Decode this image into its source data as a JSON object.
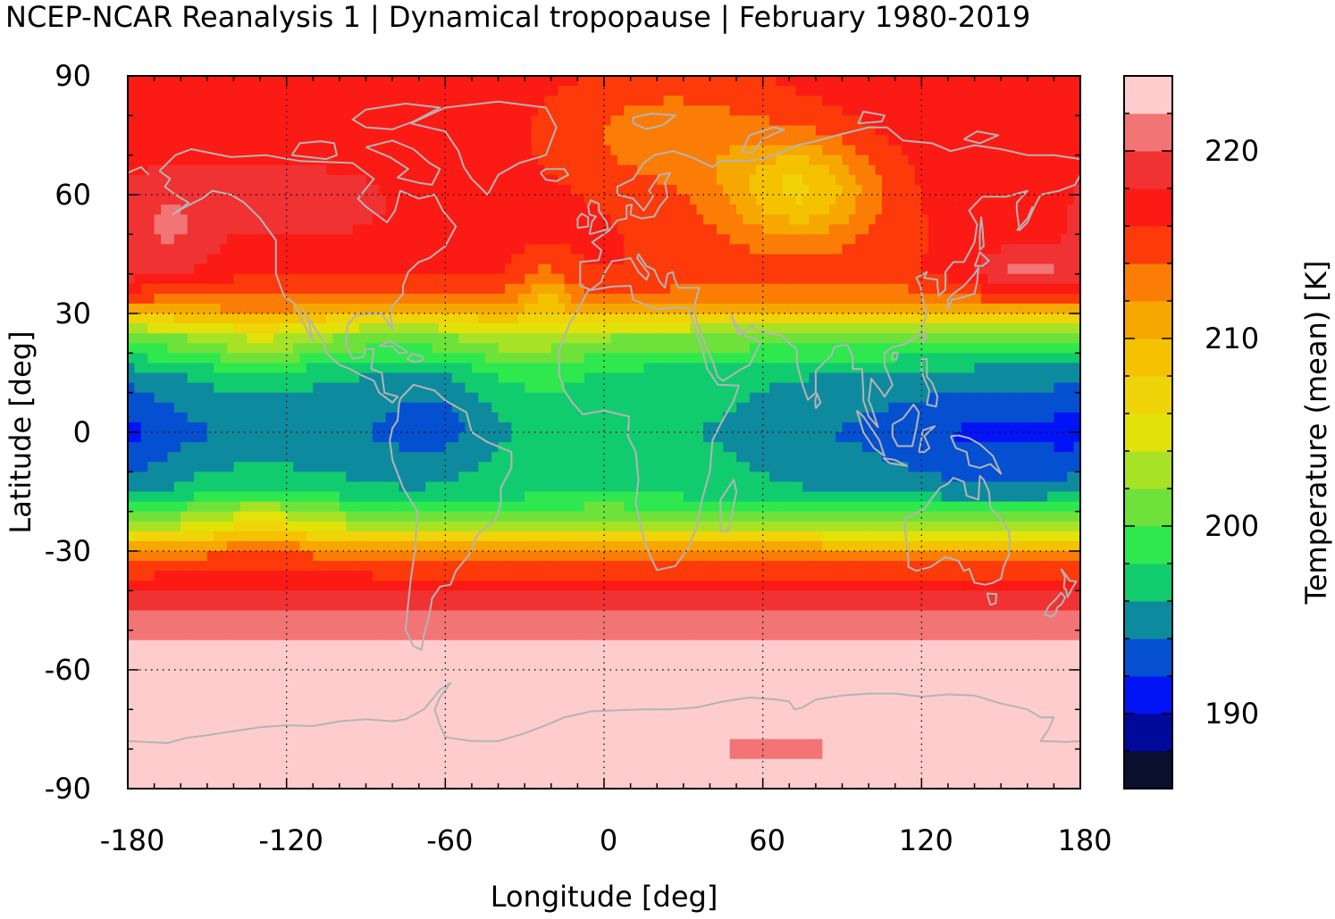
{
  "title": "NCEP-NCAR Reanalysis 1 | Dynamical tropopause | February 1980-2019",
  "chart_data": {
    "type": "heatmap",
    "xlabel": "Longitude [deg]",
    "ylabel": "Latitude [deg]",
    "xlim": [
      -180,
      180
    ],
    "ylim": [
      -90,
      90
    ],
    "xticks": [
      -180,
      -120,
      -60,
      0,
      60,
      120,
      180
    ],
    "yticks": [
      90,
      60,
      30,
      0,
      -30,
      -60,
      -90
    ],
    "colorbar": {
      "label": "Temperature (mean) [K]",
      "ticks": [
        190,
        200,
        210,
        220
      ],
      "range": [
        186,
        224
      ],
      "step": 2,
      "colors": [
        "#0a0f2e",
        "#000a9a",
        "#0014f5",
        "#0550d0",
        "#0e8a9e",
        "#11cc6e",
        "#2ee84e",
        "#6ee23a",
        "#a8e226",
        "#e2e20a",
        "#f0d40a",
        "#f5c200",
        "#f7a800",
        "#fb7d05",
        "#fc3a0a",
        "#fc1a14",
        "#f03232",
        "#f37474",
        "#fecccc"
      ],
      "grid": "off"
    },
    "zonal_pattern": [
      {
        "lat": 90,
        "value": 217
      },
      {
        "lat": 60,
        "value": 217
      },
      {
        "lat": 40,
        "value": 216
      },
      {
        "lat": 32,
        "value": 212
      },
      {
        "lat": 25,
        "value": 202
      },
      {
        "lat": 15,
        "value": 196
      },
      {
        "lat": 0,
        "value": 194
      },
      {
        "lat": -15,
        "value": 196
      },
      {
        "lat": -25,
        "value": 204
      },
      {
        "lat": -30,
        "value": 212
      },
      {
        "lat": -38,
        "value": 217
      },
      {
        "lat": -48,
        "value": 221
      },
      {
        "lat": -55,
        "value": 223
      },
      {
        "lat": -90,
        "value": 223
      }
    ]
  }
}
